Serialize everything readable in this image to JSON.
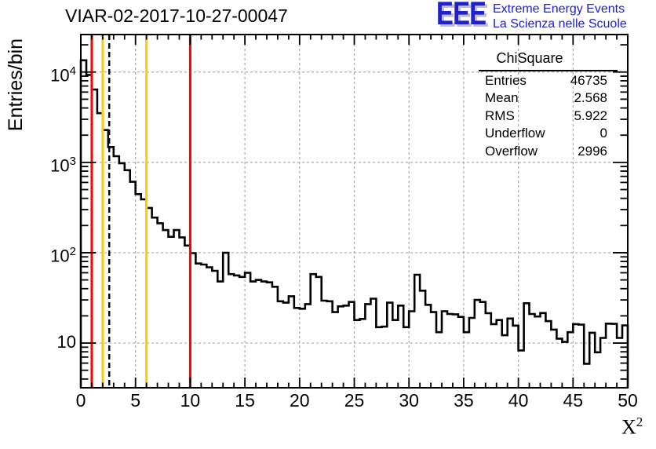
{
  "logo": {
    "letters": "EEE",
    "line1": "Extreme Energy Events",
    "line2": "La Scienza nelle Scuole",
    "color": "#2020cc",
    "shadow_color": "#c0c0c0"
  },
  "stats": {
    "title": "ChiSquare",
    "rows": [
      {
        "label": "Entries",
        "value": "46735"
      },
      {
        "label": "Mean",
        "value": "2.568"
      },
      {
        "label": "RMS",
        "value": "5.922"
      },
      {
        "label": "Underflow",
        "value": "0"
      },
      {
        "label": "Overflow",
        "value": "2996"
      }
    ]
  },
  "chart_data": {
    "type": "bar",
    "subtype": "step-histogram",
    "title": "VIAR-02-2017-10-27-00047",
    "ylabel": "Entries/bin",
    "xaxis_title": {
      "base": "X",
      "sup": "2"
    },
    "yscale": "log",
    "xlim": [
      0,
      50
    ],
    "ylim": [
      3.2,
      26000
    ],
    "grid": true,
    "grid_color": "#a9a9a9",
    "line_color": "#000000",
    "bin_start": 0,
    "bin_width": 0.5,
    "values": [
      13500,
      9300,
      6400,
      3500,
      2280,
      1480,
      1170,
      980,
      820,
      610,
      445,
      390,
      313,
      245,
      212,
      178,
      150,
      178,
      148,
      120,
      99,
      76,
      74,
      69,
      63,
      48,
      100,
      58,
      56,
      54,
      60,
      48,
      50,
      48,
      47,
      42,
      29,
      28,
      33,
      24.5,
      24,
      27,
      58,
      54,
      29.5,
      29,
      22,
      25.5,
      26,
      28.5,
      18,
      18.5,
      27,
      31,
      15,
      15.2,
      28,
      18,
      26,
      15,
      22.5,
      57,
      38,
      26.5,
      22,
      13.2,
      22.5,
      21,
      20.8,
      19.5,
      13.2,
      19,
      30,
      28.5,
      21.4,
      16.2,
      18,
      12.2,
      18.7,
      15.6,
      8.3,
      27.6,
      21,
      19.7,
      21.5,
      17.5,
      14.1,
      11.2,
      10.3,
      13.2,
      16.2,
      16,
      5.9,
      13,
      7.9,
      11.4,
      16.4,
      16.3,
      11.4,
      15.7
    ],
    "x_major_ticks": [
      "0",
      "5",
      "10",
      "15",
      "20",
      "25",
      "30",
      "35",
      "40",
      "45",
      "50"
    ],
    "y_major_ticks": [
      {
        "v": 10,
        "base": "10",
        "sup": ""
      },
      {
        "v": 100,
        "base": "10",
        "sup": "2"
      },
      {
        "v": 1000,
        "base": "10",
        "sup": "3"
      },
      {
        "v": 10000,
        "base": "10",
        "sup": "4"
      }
    ],
    "vlines": [
      {
        "x": 1,
        "color": "#ff0000",
        "style": "solid",
        "name": "red-lower-cut"
      },
      {
        "x": 2,
        "color": "#ffcc00",
        "style": "solid",
        "name": "yellow-lower-cut"
      },
      {
        "x": 2.6,
        "color": "#000000",
        "style": "dashed",
        "name": "mean-marker"
      },
      {
        "x": 6,
        "color": "#ffcc00",
        "style": "solid",
        "name": "yellow-upper-cut"
      },
      {
        "x": 10,
        "color": "#ff0000",
        "style": "solid",
        "name": "red-upper-cut"
      }
    ]
  }
}
